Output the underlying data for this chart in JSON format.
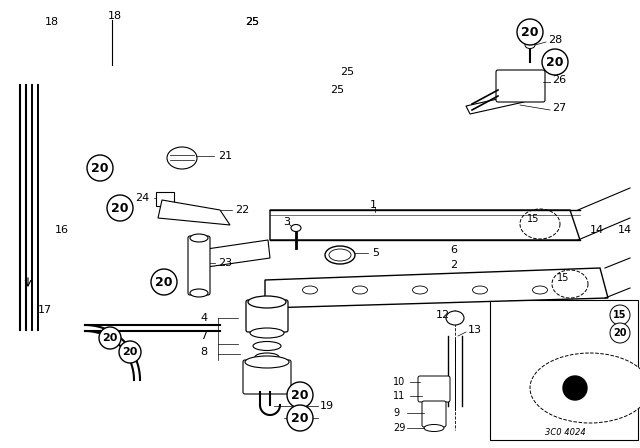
{
  "bg_color": "#ffffff",
  "line_color": "#000000",
  "fig_width": 6.4,
  "fig_height": 4.48,
  "dpi": 100,
  "watermark": "3C0 4024"
}
